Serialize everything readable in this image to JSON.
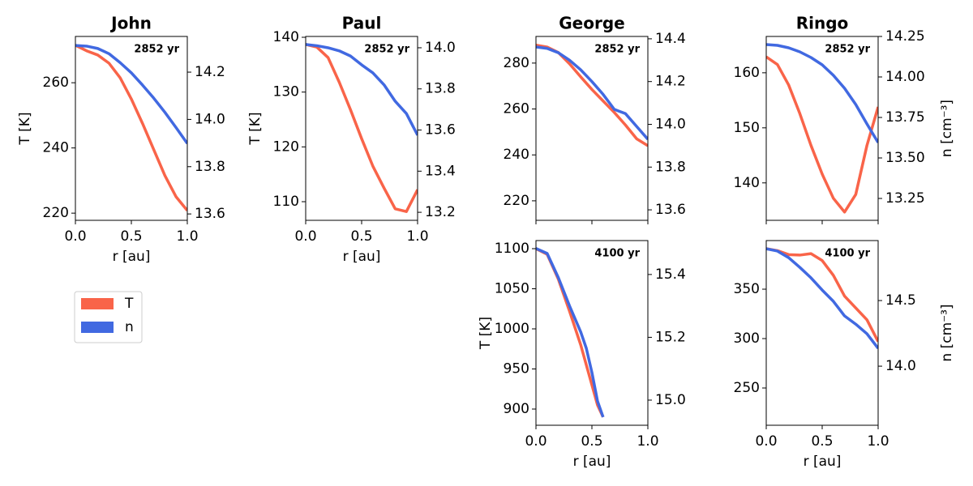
{
  "chart_data": [
    {
      "type": "line",
      "title": "John",
      "annotation": "2852 yr",
      "xlabel": "r [au]",
      "ylabel": "T [K]",
      "x": [
        0,
        0.1,
        0.2,
        0.3,
        0.4,
        0.5,
        0.6,
        0.7,
        0.8,
        0.9,
        1
      ],
      "series": [
        {
          "name": "T",
          "color": "#f96449",
          "values": [
            271.5,
            269.8,
            268.5,
            266,
            261.5,
            255,
            247.5,
            239.5,
            231.5,
            225,
            220.8
          ]
        },
        {
          "name": "n",
          "color": "#4169e1",
          "axis": "y2",
          "values": [
            14.313,
            14.31,
            14.3,
            14.278,
            14.24,
            14.197,
            14.145,
            14.09,
            14.03,
            13.965,
            13.898
          ]
        }
      ],
      "xlim": [
        0,
        1
      ],
      "xticks": [
        {
          "value": 0,
          "label": "0.0"
        },
        0.5,
        {
          "value": 1,
          "label": "1.0"
        }
      ],
      "ylim": [
        217.8,
        274.2
      ],
      "yticks": [
        220,
        240,
        260
      ],
      "y2lim": [
        13.573,
        14.351
      ],
      "y2ticks": [
        13.6,
        13.8,
        {
          "value": 14,
          "label": "14.0"
        },
        14.2
      ]
    },
    {
      "type": "line",
      "title": "Paul",
      "annotation": "2852 yr",
      "xlabel": "r [au]",
      "ylabel": "T [K]",
      "x": [
        0,
        0.1,
        0.2,
        0.3,
        0.4,
        0.5,
        0.6,
        0.7,
        0.8,
        0.9,
        1
      ],
      "series": [
        {
          "color": "#f96449",
          "values": [
            138.7,
            138.2,
            136.3,
            131.8,
            126.8,
            121.5,
            116.5,
            112.5,
            108.7,
            108.2,
            112.2
          ]
        },
        {
          "color": "#4169e1",
          "axis": "y2",
          "values": [
            14.016,
            14.01,
            14.0,
            13.985,
            13.96,
            13.917,
            13.878,
            13.82,
            13.74,
            13.68,
            13.575
          ]
        }
      ],
      "xlim": [
        0,
        1
      ],
      "xticks": [
        {
          "value": 0,
          "label": "0.0"
        },
        0.5,
        {
          "value": 1,
          "label": "1.0"
        }
      ],
      "ylim": [
        106.6,
        140.15
      ],
      "yticks": [
        110,
        120,
        130,
        140
      ],
      "y2lim": [
        13.161,
        14.055
      ],
      "y2ticks": [
        13.2,
        13.4,
        13.6,
        13.8,
        {
          "value": 14,
          "label": "14.0"
        }
      ]
    },
    {
      "type": "line",
      "title": "George",
      "annotation": "2852 yr",
      "show_xtick_labels": false,
      "x": [
        0,
        0.1,
        0.2,
        0.3,
        0.4,
        0.5,
        0.6,
        0.7,
        0.8,
        0.9,
        1
      ],
      "series": [
        {
          "color": "#f96449",
          "values": [
            287.8,
            287,
            284.6,
            279.7,
            274,
            268.5,
            263.5,
            258.5,
            253,
            247,
            244
          ]
        },
        {
          "color": "#4169e1",
          "axis": "y2",
          "values": [
            14.362,
            14.355,
            14.335,
            14.3,
            14.255,
            14.2,
            14.14,
            14.07,
            14.05,
            13.99,
            13.93
          ]
        }
      ],
      "xlim": [
        0,
        1
      ],
      "xticks": [
        0,
        0.5,
        1
      ],
      "ylim": [
        211.5,
        291.6
      ],
      "yticks": [
        220,
        240,
        260,
        280
      ],
      "y2lim": [
        13.551,
        14.411
      ],
      "y2ticks": [
        13.6,
        13.8,
        {
          "value": 14,
          "label": "14.0"
        },
        14.2,
        14.4
      ]
    },
    {
      "type": "line",
      "title": "Ringo",
      "annotation": "2852 yr",
      "y2label": "n [cm⁻³]",
      "show_xtick_labels": false,
      "x": [
        0,
        0.1,
        0.2,
        0.3,
        0.4,
        0.5,
        0.6,
        0.7,
        0.8,
        0.9,
        1
      ],
      "series": [
        {
          "color": "#f96449",
          "values": [
            162.9,
            161.5,
            157.8,
            152.6,
            146.8,
            141.6,
            137.2,
            134.7,
            137.9,
            146.8,
            153.8
          ]
        },
        {
          "color": "#4169e1",
          "axis": "y2",
          "values": [
            14.2,
            14.195,
            14.18,
            14.155,
            14.12,
            14.075,
            14.01,
            13.93,
            13.83,
            13.71,
            13.595
          ]
        }
      ],
      "xlim": [
        0,
        1
      ],
      "xticks": [
        0,
        0.5,
        1
      ],
      "ylim": [
        133.2,
        166.6
      ],
      "yticks": [
        140,
        150,
        160
      ],
      "y2lim": [
        13.115,
        14.25
      ],
      "y2ticks": [
        13.25,
        {
          "value": 13.5,
          "label": "13.50"
        },
        13.75,
        {
          "value": 14,
          "label": "14.00"
        },
        14.25
      ]
    },
    {
      "type": "line",
      "annotation": "4100 yr",
      "xlabel": "r [au]",
      "ylabel": "T [K]",
      "x": [
        0,
        0.1,
        0.2,
        0.3,
        0.4,
        0.45,
        0.5,
        0.55,
        0.6
      ],
      "series": [
        {
          "color": "#f96449",
          "values": [
            1100,
            1093,
            1062,
            1022,
            980,
            955,
            930,
            905,
            890
          ]
        },
        {
          "color": "#4169e1",
          "axis": "y2",
          "values": [
            15.483,
            15.467,
            15.39,
            15.3,
            15.217,
            15.165,
            15.088,
            14.997,
            14.946
          ]
        }
      ],
      "xlim": [
        0,
        1
      ],
      "xticks": [
        {
          "value": 0,
          "label": "0.0"
        },
        0.5,
        {
          "value": 1,
          "label": "1.0"
        }
      ],
      "ylim": [
        879.8,
        1110.1
      ],
      "yticks": [
        900,
        950,
        1000,
        1050,
        1100
      ],
      "y2lim": [
        14.92,
        15.508
      ],
      "y2ticks": [
        {
          "value": 15,
          "label": "15.0"
        },
        15.2,
        15.4
      ]
    },
    {
      "type": "line",
      "annotation": "4100 yr",
      "xlabel": "r [au]",
      "y2label": "n [cm⁻³]",
      "x": [
        0,
        0.1,
        0.2,
        0.3,
        0.4,
        0.5,
        0.6,
        0.7,
        0.8,
        0.9,
        1
      ],
      "series": [
        {
          "color": "#f96449",
          "values": [
            391,
            389,
            385,
            384.5,
            386,
            379,
            364,
            343,
            331,
            319,
            297
          ]
        },
        {
          "color": "#4169e1",
          "axis": "y2",
          "values": [
            14.895,
            14.877,
            14.827,
            14.753,
            14.673,
            14.58,
            14.494,
            14.383,
            14.32,
            14.247,
            14.136
          ]
        }
      ],
      "xlim": [
        0,
        1
      ],
      "xticks": [
        {
          "value": 0,
          "label": "0.0"
        },
        0.5,
        {
          "value": 1,
          "label": "1.0"
        }
      ],
      "ylim": [
        212.3,
        399.2
      ],
      "yticks": [
        250,
        300,
        350
      ],
      "y2lim": [
        13.55,
        14.957
      ],
      "y2ticks": [
        {
          "value": 14,
          "label": "14.0"
        },
        14.5
      ]
    }
  ]
}
